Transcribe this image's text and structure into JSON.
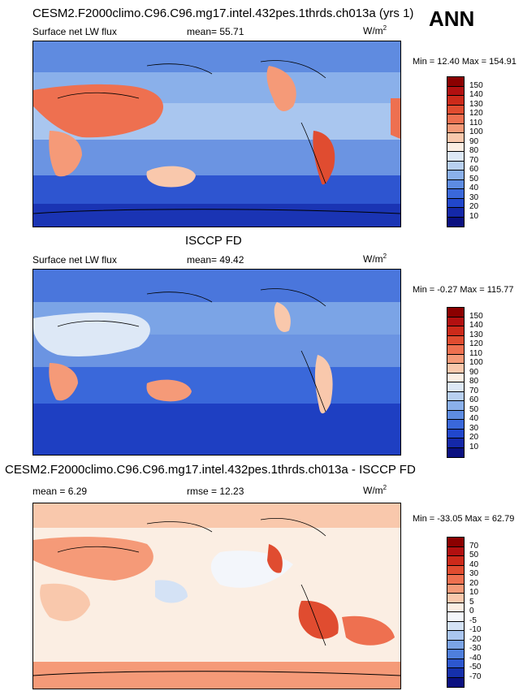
{
  "season": "ANN",
  "panels": [
    {
      "title": "CESM2.F2000climo.C96.C96.mg17.intel.432pes.1thrds.ch013a (yrs 1)",
      "variable": "Surface net LW flux",
      "stat": "mean=  55.71",
      "units": "W/m",
      "units_sup": "2",
      "minmax": "Min =  12.40 Max = 154.91",
      "levels": [
        "150",
        "140",
        "130",
        "120",
        "110",
        "100",
        "90",
        "80",
        "70",
        "60",
        "50",
        "40",
        "30",
        "20",
        "10"
      ],
      "colors": [
        "#8b0000",
        "#b21010",
        "#cc2a1a",
        "#e04c30",
        "#ee7050",
        "#f59a78",
        "#f9c8ac",
        "#fbeee3",
        "#dde8f6",
        "#b8d0f0",
        "#8ab0ea",
        "#5d8ce2",
        "#3a68da",
        "#2147cc",
        "#1428a8",
        "#0a1080"
      ]
    },
    {
      "title": "ISCCP FD",
      "variable": "Surface net LW flux",
      "stat": "mean=  49.42",
      "units": "W/m",
      "units_sup": "2",
      "minmax": "Min =  -0.27 Max = 115.77",
      "levels": [
        "150",
        "140",
        "130",
        "120",
        "110",
        "100",
        "90",
        "80",
        "70",
        "60",
        "50",
        "40",
        "30",
        "20",
        "10"
      ],
      "colors": [
        "#8b0000",
        "#b21010",
        "#cc2a1a",
        "#e04c30",
        "#ee7050",
        "#f59a78",
        "#f9c8ac",
        "#fbeee3",
        "#dde8f6",
        "#b8d0f0",
        "#8ab0ea",
        "#5d8ce2",
        "#3a68da",
        "#2147cc",
        "#1428a8",
        "#0a1080"
      ]
    },
    {
      "title": "CESM2.F2000climo.C96.C96.mg17.intel.432pes.1thrds.ch013a - ISCCP FD",
      "variable": "mean =   6.29",
      "stat": "rmse =  12.23",
      "units": "W/m",
      "units_sup": "2",
      "minmax": "Min = -33.05 Max =  62.79",
      "levels": [
        "70",
        "50",
        "40",
        "30",
        "20",
        "10",
        "5",
        "0",
        "-5",
        "-10",
        "-20",
        "-30",
        "-40",
        "-50",
        "-70"
      ],
      "colors": [
        "#8b0000",
        "#b21010",
        "#cc2a1a",
        "#e04c30",
        "#ee7050",
        "#f59a78",
        "#f9c8ac",
        "#fbeee3",
        "#f3f6fb",
        "#d4e2f5",
        "#aac6ef",
        "#7ba4e6",
        "#4f7fdc",
        "#2d57cf",
        "#1530aa",
        "#0a1080"
      ]
    }
  ]
}
